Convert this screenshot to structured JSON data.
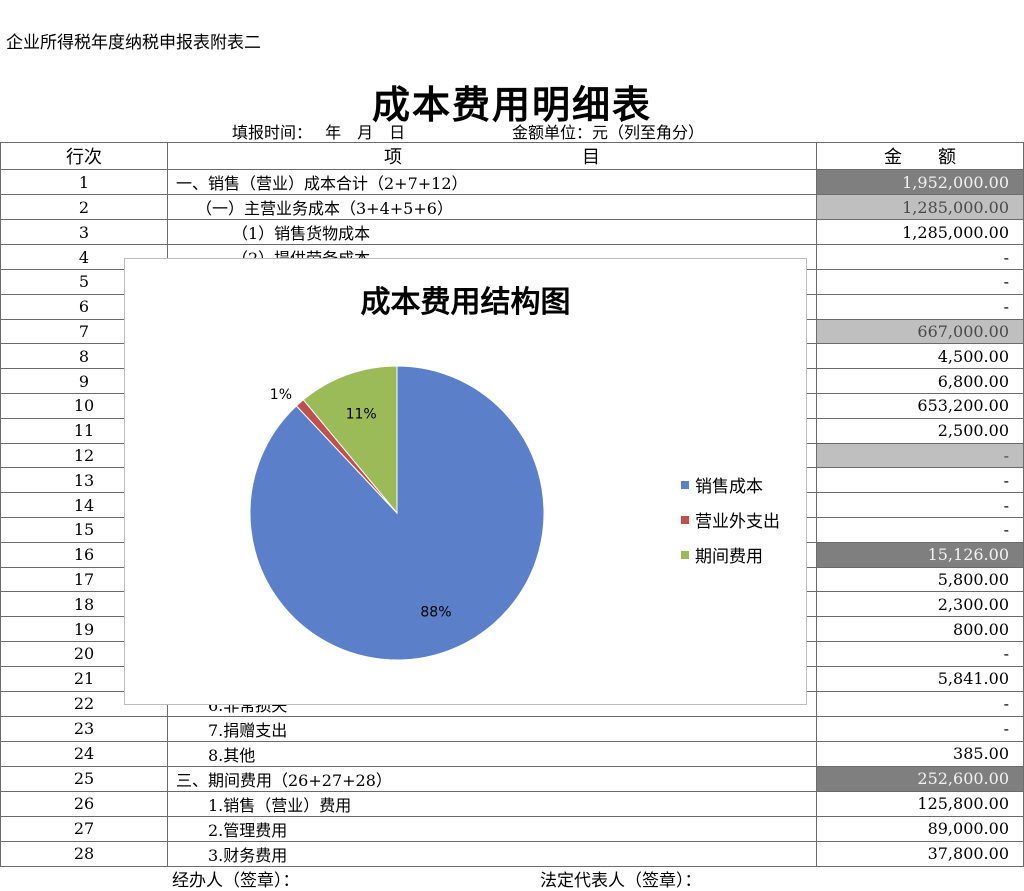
{
  "header": {
    "corner_title": "企业所得税年度纳税申报表附表二",
    "title": "成本费用明细表",
    "fill_time": "填报时间：　 年　月　日",
    "unit": "金额单位：元（列至角分）"
  },
  "columns": {
    "no": "行次",
    "item": "项　　　　　　　　　　目",
    "amount": "金　　额"
  },
  "rows": [
    {
      "no": "1",
      "item": "一、销售（营业）成本合计（2+7+12）",
      "amount": "1,952,000.00"
    },
    {
      "no": "2",
      "item": "（一）主营业务成本（3+4+5+6）",
      "amount": "1,285,000.00"
    },
    {
      "no": "3",
      "item": "（1）销售货物成本",
      "amount": "1,285,000.00"
    },
    {
      "no": "4",
      "item": "（2）提供劳务成本",
      "amount": "-"
    },
    {
      "no": "5",
      "item": "",
      "amount": "-"
    },
    {
      "no": "6",
      "item": "",
      "amount": "-"
    },
    {
      "no": "7",
      "item": "",
      "amount": "667,000.00"
    },
    {
      "no": "8",
      "item": "",
      "amount": "4,500.00"
    },
    {
      "no": "9",
      "item": "",
      "amount": "6,800.00"
    },
    {
      "no": "10",
      "item": "",
      "amount": "653,200.00"
    },
    {
      "no": "11",
      "item": "",
      "amount": "2,500.00"
    },
    {
      "no": "12",
      "item": "",
      "amount": "-"
    },
    {
      "no": "13",
      "item": "",
      "amount": "-"
    },
    {
      "no": "14",
      "item": "",
      "amount": "-"
    },
    {
      "no": "15",
      "item": "",
      "amount": "-"
    },
    {
      "no": "16",
      "item": "",
      "amount": "15,126.00"
    },
    {
      "no": "17",
      "item": "",
      "amount": "5,800.00"
    },
    {
      "no": "18",
      "item": "",
      "amount": "2,300.00"
    },
    {
      "no": "19",
      "item": "",
      "amount": "800.00"
    },
    {
      "no": "20",
      "item": "",
      "amount": "-"
    },
    {
      "no": "21",
      "item": "",
      "amount": "5,841.00"
    },
    {
      "no": "22",
      "item": "6.非常损失",
      "amount": "-"
    },
    {
      "no": "23",
      "item": "7.捐赠支出",
      "amount": "-"
    },
    {
      "no": "24",
      "item": "8.其他",
      "amount": "385.00"
    },
    {
      "no": "25",
      "item": "三、期间费用（26+27+28）",
      "amount": "252,600.00"
    },
    {
      "no": "26",
      "item": "1.销售（营业）费用",
      "amount": "125,800.00"
    },
    {
      "no": "27",
      "item": "2.管理费用",
      "amount": "89,000.00"
    },
    {
      "no": "28",
      "item": "3.财务费用",
      "amount": "37,800.00"
    }
  ],
  "footer": {
    "handler": "经办人（签章）：",
    "legal_rep": "法定代表人（签章）："
  },
  "chart_data": {
    "type": "pie",
    "title": "成本费用结构图",
    "categories": [
      "销售成本",
      "营业外支出",
      "期间费用"
    ],
    "values": [
      88,
      1,
      11
    ],
    "labels": [
      "88%",
      "1%",
      "11%"
    ],
    "colors": [
      "#5b7fc8",
      "#c0504d",
      "#9bbb59"
    ],
    "legend": "right"
  }
}
